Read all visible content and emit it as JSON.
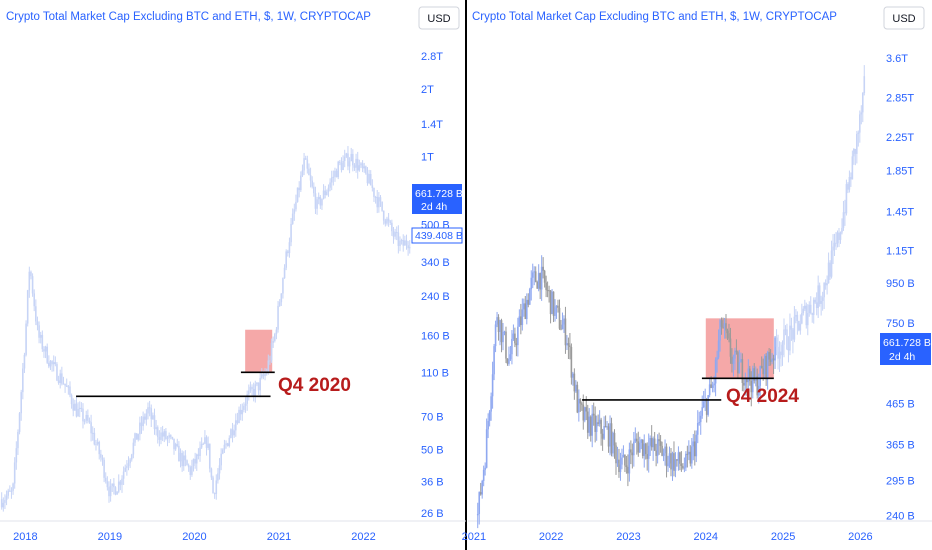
{
  "colors": {
    "accent": "#2962ff",
    "candle_up": "#8fa8f0",
    "candle_down": "#9a9a9a",
    "candle_proj": "#c7d4f6",
    "zone": "#f28b8b",
    "label": "#b71c1c",
    "divider": "#000000"
  },
  "chart_data": [
    {
      "type": "candlestick",
      "title": "Crypto Total Market Cap Excluding BTC and ETH, $, 1W, CRYPTOCAP",
      "currency": "USD",
      "y_scale": "log",
      "x_range": [
        2017.7,
        2022.55
      ],
      "ylim_billions": [
        24,
        3300
      ],
      "y_ticks": [
        "2.8T",
        "2T",
        "1.4T",
        "1T",
        "500 B",
        "340 B",
        "240 B",
        "160 B",
        "110 B",
        "70 B",
        "50 B",
        "36 B",
        "26 B"
      ],
      "x_ticks": [
        "2018",
        "2019",
        "2020",
        "2021",
        "2022"
      ],
      "price_badge": {
        "value": "661.728 B",
        "countdown": "2d 4h"
      },
      "level_badge": "439.408 B",
      "path_keypoints": [
        [
          2017.72,
          30
        ],
        [
          2017.85,
          32
        ],
        [
          2017.95,
          90
        ],
        [
          2018.0,
          160
        ],
        [
          2018.05,
          330
        ],
        [
          2018.15,
          160
        ],
        [
          2018.3,
          120
        ],
        [
          2018.45,
          100
        ],
        [
          2018.6,
          75
        ],
        [
          2018.75,
          65
        ],
        [
          2018.9,
          45
        ],
        [
          2019.0,
          32
        ],
        [
          2019.1,
          35
        ],
        [
          2019.3,
          55
        ],
        [
          2019.45,
          75
        ],
        [
          2019.55,
          60
        ],
        [
          2019.7,
          55
        ],
        [
          2019.85,
          45
        ],
        [
          2019.95,
          40
        ],
        [
          2020.15,
          55
        ],
        [
          2020.22,
          32
        ],
        [
          2020.35,
          50
        ],
        [
          2020.5,
          70
        ],
        [
          2020.62,
          85
        ],
        [
          2020.75,
          95
        ],
        [
          2020.85,
          110
        ],
        [
          2020.95,
          160
        ],
        [
          2021.05,
          300
        ],
        [
          2021.15,
          500
        ],
        [
          2021.3,
          950
        ],
        [
          2021.45,
          600
        ],
        [
          2021.55,
          700
        ],
        [
          2021.7,
          900
        ],
        [
          2021.85,
          1000
        ],
        [
          2021.95,
          900
        ],
        [
          2022.05,
          800
        ],
        [
          2022.2,
          600
        ],
        [
          2022.35,
          450
        ],
        [
          2022.45,
          400
        ],
        [
          2022.55,
          430
        ]
      ],
      "annotations": [
        {
          "text": "Q4 2020",
          "zone_x": [
            2020.6,
            2020.92
          ],
          "zone_y": [
            110,
            170
          ]
        },
        {
          "type": "hline",
          "value": 86,
          "x": [
            2018.6,
            2020.9
          ]
        },
        {
          "type": "hline",
          "value": 110,
          "x": [
            2020.55,
            2020.95
          ]
        }
      ]
    },
    {
      "type": "candlestick",
      "title": "Crypto Total Market Cap Excluding BTC and ETH, $, 1W, CRYPTOCAP",
      "currency": "USD",
      "y_scale": "log",
      "x_range": [
        2020.95,
        2026.15
      ],
      "ylim_billions": [
        232,
        4000
      ],
      "y_ticks": [
        "3.6T",
        "2.85T",
        "2.25T",
        "1.85T",
        "1.45T",
        "1.15T",
        "950 B",
        "750 B",
        "465 B",
        "365 B",
        "295 B",
        "240 B"
      ],
      "x_ticks": [
        "2021",
        "2022",
        "2023",
        "2024",
        "2025",
        "2026"
      ],
      "price_badge": {
        "value": "661.728 B",
        "countdown": "2d 4h"
      },
      "path_keypoints": [
        [
          2021.05,
          240
        ],
        [
          2021.15,
          350
        ],
        [
          2021.3,
          800
        ],
        [
          2021.45,
          600
        ],
        [
          2021.6,
          750
        ],
        [
          2021.75,
          950
        ],
        [
          2021.85,
          1000
        ],
        [
          2021.95,
          900
        ],
        [
          2022.05,
          800
        ],
        [
          2022.2,
          700
        ],
        [
          2022.35,
          450
        ],
        [
          2022.45,
          420
        ],
        [
          2022.6,
          400
        ],
        [
          2022.75,
          390
        ],
        [
          2022.85,
          340
        ],
        [
          2022.95,
          320
        ],
        [
          2023.1,
          370
        ],
        [
          2023.25,
          360
        ],
        [
          2023.4,
          355
        ],
        [
          2023.5,
          340
        ],
        [
          2023.6,
          330
        ],
        [
          2023.75,
          320
        ],
        [
          2023.85,
          360
        ],
        [
          2023.95,
          440
        ],
        [
          2024.1,
          520
        ],
        [
          2024.2,
          750
        ],
        [
          2024.35,
          600
        ],
        [
          2024.5,
          560
        ],
        [
          2024.65,
          520
        ],
        [
          2024.8,
          600
        ],
        [
          2024.9,
          640
        ],
        [
          2025.1,
          700
        ],
        [
          2025.3,
          800
        ],
        [
          2025.5,
          900
        ],
        [
          2025.7,
          1200
        ],
        [
          2025.85,
          1700
        ],
        [
          2026.0,
          2500
        ],
        [
          2026.05,
          3000
        ]
      ],
      "projection_from": 2024.9,
      "annotations": [
        {
          "text": "Q4 2024",
          "zone_x": [
            2024.0,
            2024.88
          ],
          "zone_y": [
            540,
            770
          ]
        },
        {
          "type": "hline",
          "value": 475,
          "x": [
            2022.4,
            2024.2
          ]
        },
        {
          "type": "hline",
          "value": 540,
          "x": [
            2023.95,
            2024.88
          ]
        }
      ]
    }
  ]
}
